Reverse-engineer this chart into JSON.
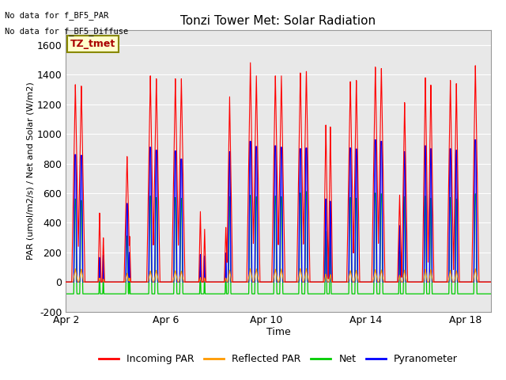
{
  "title": "Tonzi Tower Met: Solar Radiation",
  "xlabel": "Time",
  "ylabel": "PAR (umol/m2/s) / Net and Solar (W/m2)",
  "ylim": [
    -200,
    1700
  ],
  "yticks": [
    -200,
    0,
    200,
    400,
    600,
    800,
    1000,
    1200,
    1400,
    1600
  ],
  "xtick_labels": [
    "Apr 2",
    "Apr 6",
    "Apr 10",
    "Apr 14",
    "Apr 18"
  ],
  "annotation_text1": "No data for f_BF5_PAR",
  "annotation_text2": "No data for f_BF5_Diffuse",
  "legend_label_text": "TZ_tmet",
  "legend_entries": [
    "Incoming PAR",
    "Reflected PAR",
    "Net",
    "Pyranometer"
  ],
  "color_incoming": "#ff0000",
  "color_reflected": "#ff9900",
  "color_net": "#00cc00",
  "color_pyranometer": "#0000ff",
  "background_color": "#e8e8e8",
  "num_days": 17,
  "figsize": [
    6.4,
    4.8
  ],
  "dpi": 100
}
